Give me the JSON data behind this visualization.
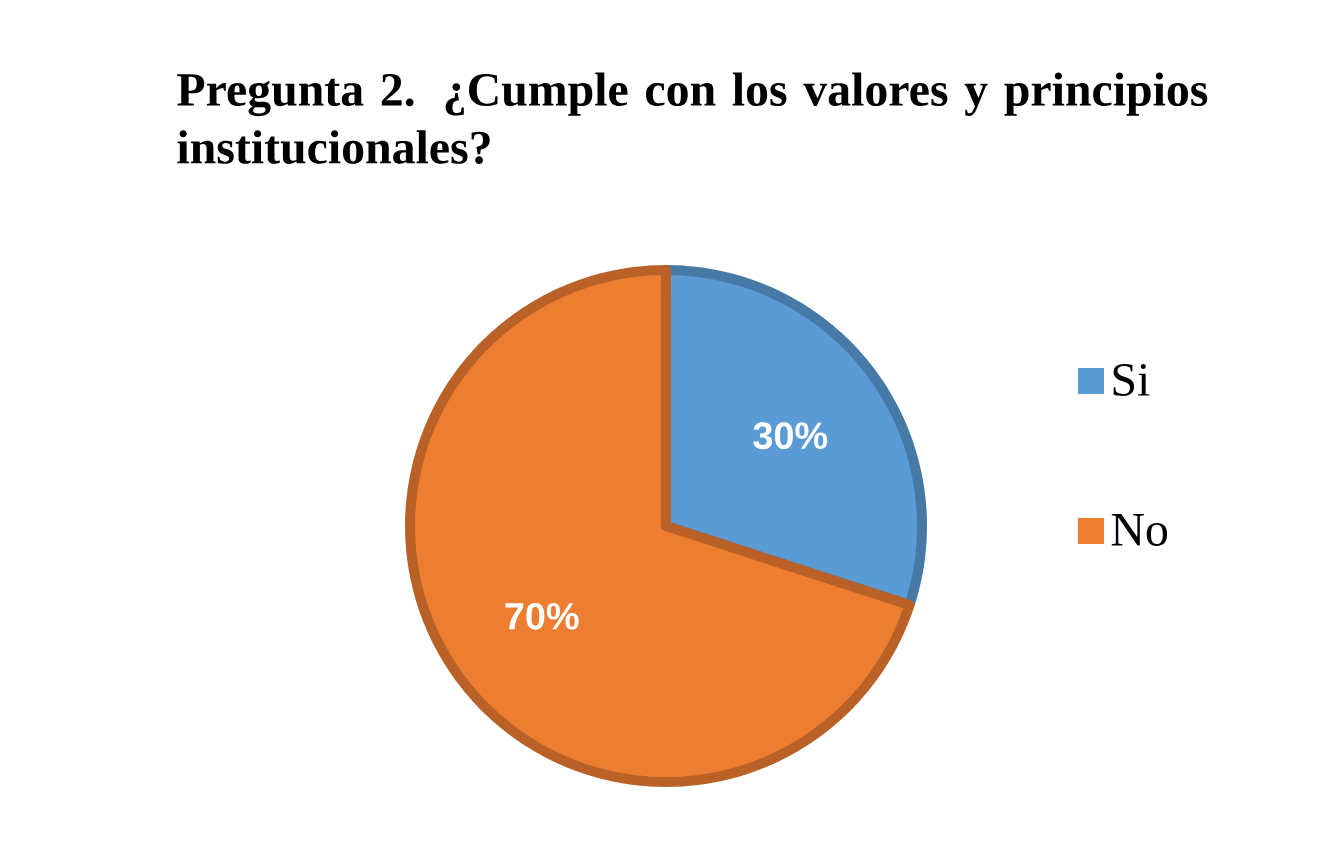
{
  "chart_data": {
    "type": "pie",
    "title": "Pregunta 2. ¿Cumple con los valores y principios institucionales?",
    "categories": [
      "Si",
      "No"
    ],
    "values": [
      30,
      70
    ],
    "value_labels": [
      "30%",
      "70%"
    ],
    "colors": [
      "#5b9bd5",
      "#ed7d31"
    ],
    "legend": "right"
  }
}
